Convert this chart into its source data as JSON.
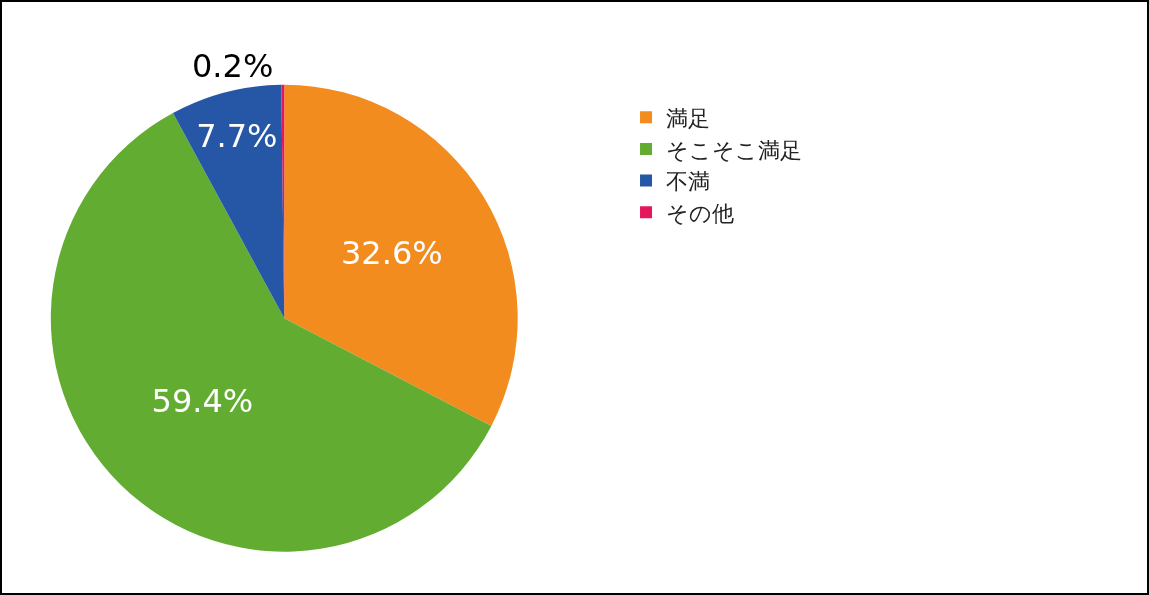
{
  "chart_data": {
    "type": "pie",
    "categories": [
      "満足",
      "そこそこ満足",
      "不満",
      "その他"
    ],
    "values": [
      32.6,
      59.4,
      7.7,
      0.2
    ],
    "colors": [
      "#f28c1e",
      "#62ad31",
      "#2656a6",
      "#e5175c"
    ],
    "value_labels": [
      "32.6%",
      "59.4%",
      "7.7%",
      "0.2%"
    ],
    "legend": "right"
  }
}
